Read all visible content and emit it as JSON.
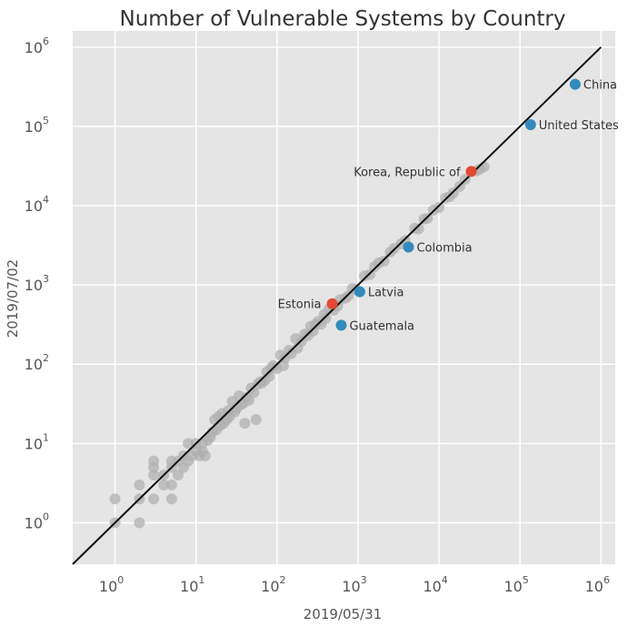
{
  "chart_data": {
    "type": "scatter",
    "title": "Number of Vulnerable Systems by Country",
    "xlabel": "2019/05/31",
    "ylabel": "2019/07/02",
    "x_scale": "log",
    "y_scale": "log",
    "xlim": [
      0.3,
      1500000
    ],
    "ylim": [
      0.3,
      1600000
    ],
    "x_ticks": [
      {
        "base": "10",
        "exp": "0"
      },
      {
        "base": "10",
        "exp": "1"
      },
      {
        "base": "10",
        "exp": "2"
      },
      {
        "base": "10",
        "exp": "3"
      },
      {
        "base": "10",
        "exp": "4"
      },
      {
        "base": "10",
        "exp": "5"
      },
      {
        "base": "10",
        "exp": "6"
      }
    ],
    "y_ticks": [
      {
        "base": "10",
        "exp": "0"
      },
      {
        "base": "10",
        "exp": "1"
      },
      {
        "base": "10",
        "exp": "2"
      },
      {
        "base": "10",
        "exp": "3"
      },
      {
        "base": "10",
        "exp": "4"
      },
      {
        "base": "10",
        "exp": "5"
      },
      {
        "base": "10",
        "exp": "6"
      }
    ],
    "grid": true,
    "reference_line": {
      "x": [
        0.3,
        1000000
      ],
      "y": [
        0.3,
        1000000
      ]
    },
    "colors": {
      "background": "#e5e5e5",
      "grid": "#ffffff",
      "other_points": "#b0b0b0",
      "increased": "#e24a33",
      "decreased": "#348abd",
      "reference_line": "#111111"
    },
    "highlighted": [
      {
        "label": "China",
        "x": 480000,
        "y": 340000,
        "group": "decreased",
        "label_side": "right"
      },
      {
        "label": "United States",
        "x": 135000,
        "y": 105000,
        "group": "decreased",
        "label_side": "right"
      },
      {
        "label": "Korea, Republic of",
        "x": 25000,
        "y": 27000,
        "group": "increased",
        "label_side": "left"
      },
      {
        "label": "Colombia",
        "x": 4200,
        "y": 3000,
        "group": "decreased",
        "label_side": "right"
      },
      {
        "label": "Latvia",
        "x": 1050,
        "y": 820,
        "group": "decreased",
        "label_side": "right"
      },
      {
        "label": "Estonia",
        "x": 480,
        "y": 580,
        "group": "increased",
        "label_side": "left"
      },
      {
        "label": "Guatemala",
        "x": 620,
        "y": 310,
        "group": "decreased",
        "label_side": "right"
      }
    ],
    "other_points": [
      [
        1,
        1
      ],
      [
        1,
        2
      ],
      [
        2,
        1
      ],
      [
        2,
        2
      ],
      [
        2,
        3
      ],
      [
        3,
        2
      ],
      [
        3,
        4
      ],
      [
        3,
        5
      ],
      [
        3,
        6
      ],
      [
        4,
        3
      ],
      [
        4,
        4
      ],
      [
        5,
        2
      ],
      [
        5,
        3
      ],
      [
        5,
        5
      ],
      [
        5,
        6
      ],
      [
        6,
        4
      ],
      [
        6,
        6
      ],
      [
        7,
        5
      ],
      [
        7,
        7
      ],
      [
        8,
        6
      ],
      [
        8,
        10
      ],
      [
        9,
        7
      ],
      [
        10,
        8
      ],
      [
        10,
        10
      ],
      [
        11,
        7
      ],
      [
        12,
        8
      ],
      [
        12,
        10
      ],
      [
        13,
        7
      ],
      [
        14,
        11
      ],
      [
        15,
        12
      ],
      [
        16,
        14
      ],
      [
        17,
        20
      ],
      [
        18,
        15
      ],
      [
        19,
        22
      ],
      [
        20,
        17
      ],
      [
        21,
        24
      ],
      [
        22,
        18
      ],
      [
        24,
        20
      ],
      [
        25,
        26
      ],
      [
        26,
        22
      ],
      [
        28,
        34
      ],
      [
        30,
        25
      ],
      [
        32,
        28
      ],
      [
        34,
        40
      ],
      [
        36,
        31
      ],
      [
        38,
        32
      ],
      [
        40,
        18
      ],
      [
        42,
        38
      ],
      [
        45,
        35
      ],
      [
        48,
        50
      ],
      [
        52,
        44
      ],
      [
        55,
        20
      ],
      [
        58,
        56
      ],
      [
        62,
        60
      ],
      [
        65,
        58
      ],
      [
        70,
        62
      ],
      [
        75,
        80
      ],
      [
        80,
        70
      ],
      [
        85,
        90
      ],
      [
        90,
        96
      ],
      [
        100,
        88
      ],
      [
        110,
        130
      ],
      [
        120,
        96
      ],
      [
        125,
        120
      ],
      [
        140,
        150
      ],
      [
        150,
        136
      ],
      [
        170,
        210
      ],
      [
        180,
        160
      ],
      [
        200,
        195
      ],
      [
        220,
        240
      ],
      [
        240,
        230
      ],
      [
        260,
        300
      ],
      [
        280,
        262
      ],
      [
        300,
        320
      ],
      [
        320,
        345
      ],
      [
        350,
        320
      ],
      [
        380,
        420
      ],
      [
        400,
        380
      ],
      [
        440,
        500
      ],
      [
        500,
        480
      ],
      [
        560,
        540
      ],
      [
        600,
        650
      ],
      [
        700,
        680
      ],
      [
        760,
        730
      ],
      [
        850,
        900
      ],
      [
        950,
        880
      ],
      [
        1200,
        1300
      ],
      [
        1400,
        1350
      ],
      [
        1600,
        1700
      ],
      [
        1800,
        1900
      ],
      [
        2100,
        2000
      ],
      [
        2500,
        2600
      ],
      [
        2800,
        2900
      ],
      [
        3400,
        3300
      ],
      [
        3800,
        3600
      ],
      [
        5000,
        5200
      ],
      [
        5600,
        5100
      ],
      [
        6500,
        6800
      ],
      [
        7200,
        6900
      ],
      [
        8500,
        8800
      ],
      [
        10000,
        9500
      ],
      [
        12000,
        12500
      ],
      [
        13500,
        13000
      ],
      [
        15000,
        14500
      ],
      [
        18000,
        17500
      ],
      [
        21000,
        21500
      ],
      [
        29000,
        27500
      ],
      [
        32000,
        29000
      ],
      [
        36000,
        31000
      ]
    ]
  }
}
